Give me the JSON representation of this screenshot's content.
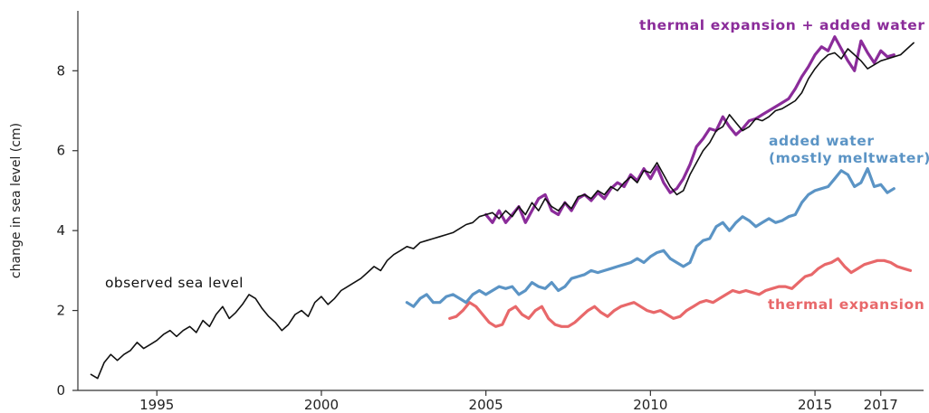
{
  "chart_data": {
    "type": "line",
    "title": "",
    "xlabel": "",
    "ylabel": "change in sea level (cm)",
    "xlim": [
      1992.6,
      2018.3
    ],
    "ylim": [
      0,
      9.5
    ],
    "x_ticks": [
      1995,
      2000,
      2005,
      2010,
      2015,
      2017
    ],
    "y_ticks": [
      0,
      2,
      4,
      6,
      8
    ],
    "grid": false,
    "legend": "none",
    "series": [
      {
        "name": "observed sea level",
        "color": "#111111",
        "x": [
          1993.0,
          1993.2,
          1993.4,
          1993.6,
          1993.8,
          1994.0,
          1994.2,
          1994.4,
          1994.6,
          1994.8,
          1995.0,
          1995.2,
          1995.4,
          1995.6,
          1995.8,
          1996.0,
          1996.2,
          1996.4,
          1996.6,
          1996.8,
          1997.0,
          1997.2,
          1997.4,
          1997.6,
          1997.8,
          1998.0,
          1998.2,
          1998.4,
          1998.6,
          1998.8,
          1999.0,
          1999.2,
          1999.4,
          1999.6,
          1999.8,
          2000.0,
          2000.2,
          2000.4,
          2000.6,
          2000.8,
          2001.0,
          2001.2,
          2001.4,
          2001.6,
          2001.8,
          2002.0,
          2002.2,
          2002.4,
          2002.6,
          2002.8,
          2003.0,
          2003.2,
          2003.4,
          2003.6,
          2003.8,
          2004.0,
          2004.2,
          2004.4,
          2004.6,
          2004.8,
          2005.0,
          2005.2,
          2005.4,
          2005.6,
          2005.8,
          2006.0,
          2006.2,
          2006.4,
          2006.6,
          2006.8,
          2007.0,
          2007.2,
          2007.4,
          2007.6,
          2007.8,
          2008.0,
          2008.2,
          2008.4,
          2008.6,
          2008.8,
          2009.0,
          2009.2,
          2009.4,
          2009.6,
          2009.8,
          2010.0,
          2010.2,
          2010.4,
          2010.6,
          2010.8,
          2011.0,
          2011.2,
          2011.4,
          2011.6,
          2011.8,
          2012.0,
          2012.2,
          2012.4,
          2012.6,
          2012.8,
          2013.0,
          2013.2,
          2013.4,
          2013.6,
          2013.8,
          2014.0,
          2014.2,
          2014.4,
          2014.6,
          2014.8,
          2015.0,
          2015.2,
          2015.4,
          2015.6,
          2015.8,
          2016.0,
          2016.2,
          2016.4,
          2016.6,
          2016.8,
          2017.0,
          2017.2,
          2017.4,
          2017.6,
          2017.8,
          2018.0
        ],
        "y": [
          0.4,
          0.3,
          0.7,
          0.9,
          0.75,
          0.9,
          1.0,
          1.2,
          1.05,
          1.15,
          1.25,
          1.4,
          1.5,
          1.35,
          1.5,
          1.6,
          1.45,
          1.75,
          1.6,
          1.9,
          2.1,
          1.8,
          1.95,
          2.15,
          2.4,
          2.3,
          2.05,
          1.85,
          1.7,
          1.5,
          1.65,
          1.9,
          2.0,
          1.85,
          2.2,
          2.35,
          2.15,
          2.3,
          2.5,
          2.6,
          2.7,
          2.8,
          2.95,
          3.1,
          3.0,
          3.25,
          3.4,
          3.5,
          3.6,
          3.55,
          3.7,
          3.75,
          3.8,
          3.85,
          3.9,
          3.95,
          4.05,
          4.15,
          4.2,
          4.35,
          4.4,
          4.45,
          4.3,
          4.5,
          4.35,
          4.6,
          4.4,
          4.7,
          4.5,
          4.8,
          4.6,
          4.5,
          4.7,
          4.55,
          4.85,
          4.9,
          4.8,
          5.0,
          4.9,
          5.1,
          5.0,
          5.2,
          5.35,
          5.2,
          5.5,
          5.45,
          5.7,
          5.4,
          5.1,
          4.9,
          5.0,
          5.4,
          5.7,
          6.0,
          6.2,
          6.5,
          6.6,
          6.9,
          6.7,
          6.5,
          6.6,
          6.8,
          6.75,
          6.85,
          7.0,
          7.05,
          7.15,
          7.25,
          7.45,
          7.8,
          8.05,
          8.25,
          8.4,
          8.45,
          8.3,
          8.55,
          8.4,
          8.25,
          8.05,
          8.15,
          8.25,
          8.3,
          8.35,
          8.4,
          8.55,
          8.7
        ]
      },
      {
        "name": "thermal expansion + added water",
        "color": "#8b2c9a",
        "x": [
          2005.0,
          2005.2,
          2005.4,
          2005.6,
          2005.8,
          2006.0,
          2006.2,
          2006.4,
          2006.6,
          2006.8,
          2007.0,
          2007.2,
          2007.4,
          2007.6,
          2007.8,
          2008.0,
          2008.2,
          2008.4,
          2008.6,
          2008.8,
          2009.0,
          2009.2,
          2009.4,
          2009.6,
          2009.8,
          2010.0,
          2010.2,
          2010.4,
          2010.6,
          2010.8,
          2011.0,
          2011.2,
          2011.4,
          2011.6,
          2011.8,
          2012.0,
          2012.2,
          2012.4,
          2012.6,
          2012.8,
          2013.0,
          2013.2,
          2013.4,
          2013.6,
          2013.8,
          2014.0,
          2014.2,
          2014.4,
          2014.6,
          2014.8,
          2015.0,
          2015.2,
          2015.4,
          2015.6,
          2015.8,
          2016.0,
          2016.2,
          2016.4,
          2016.6,
          2016.8,
          2017.0,
          2017.2,
          2017.4
        ],
        "y": [
          4.4,
          4.2,
          4.5,
          4.2,
          4.4,
          4.6,
          4.2,
          4.5,
          4.8,
          4.9,
          4.5,
          4.4,
          4.7,
          4.5,
          4.8,
          4.9,
          4.75,
          4.95,
          4.8,
          5.05,
          5.2,
          5.1,
          5.4,
          5.25,
          5.55,
          5.3,
          5.6,
          5.2,
          4.95,
          5.05,
          5.3,
          5.65,
          6.1,
          6.3,
          6.55,
          6.5,
          6.85,
          6.6,
          6.4,
          6.55,
          6.75,
          6.8,
          6.9,
          7.0,
          7.1,
          7.2,
          7.3,
          7.55,
          7.85,
          8.1,
          8.4,
          8.6,
          8.5,
          8.85,
          8.55,
          8.25,
          8.0,
          8.75,
          8.45,
          8.2,
          8.5,
          8.35,
          8.4
        ]
      },
      {
        "name": "added water (mostly meltwater)",
        "color": "#5b94c5",
        "x": [
          2002.6,
          2002.8,
          2003.0,
          2003.2,
          2003.4,
          2003.6,
          2003.8,
          2004.0,
          2004.2,
          2004.4,
          2004.6,
          2004.8,
          2005.0,
          2005.2,
          2005.4,
          2005.6,
          2005.8,
          2006.0,
          2006.2,
          2006.4,
          2006.6,
          2006.8,
          2007.0,
          2007.2,
          2007.4,
          2007.6,
          2007.8,
          2008.0,
          2008.2,
          2008.4,
          2008.6,
          2008.8,
          2009.0,
          2009.2,
          2009.4,
          2009.6,
          2009.8,
          2010.0,
          2010.2,
          2010.4,
          2010.6,
          2010.8,
          2011.0,
          2011.2,
          2011.4,
          2011.6,
          2011.8,
          2012.0,
          2012.2,
          2012.4,
          2012.6,
          2012.8,
          2013.0,
          2013.2,
          2013.4,
          2013.6,
          2013.8,
          2014.0,
          2014.2,
          2014.4,
          2014.6,
          2014.8,
          2015.0,
          2015.2,
          2015.4,
          2015.6,
          2015.8,
          2016.0,
          2016.2,
          2016.4,
          2016.6,
          2016.8,
          2017.0,
          2017.2,
          2017.4
        ],
        "y": [
          2.2,
          2.1,
          2.3,
          2.4,
          2.2,
          2.2,
          2.35,
          2.4,
          2.3,
          2.2,
          2.4,
          2.5,
          2.4,
          2.5,
          2.6,
          2.55,
          2.6,
          2.4,
          2.5,
          2.7,
          2.6,
          2.55,
          2.7,
          2.5,
          2.6,
          2.8,
          2.85,
          2.9,
          3.0,
          2.95,
          3.0,
          3.05,
          3.1,
          3.15,
          3.2,
          3.3,
          3.2,
          3.35,
          3.45,
          3.5,
          3.3,
          3.2,
          3.1,
          3.2,
          3.6,
          3.75,
          3.8,
          4.1,
          4.2,
          4.0,
          4.2,
          4.35,
          4.25,
          4.1,
          4.2,
          4.3,
          4.2,
          4.25,
          4.35,
          4.4,
          4.7,
          4.9,
          5.0,
          5.05,
          5.1,
          5.3,
          5.5,
          5.4,
          5.1,
          5.2,
          5.55,
          5.1,
          5.15,
          4.95,
          5.05
        ]
      },
      {
        "name": "thermal expansion",
        "color": "#e8686a",
        "x": [
          2003.9,
          2004.1,
          2004.3,
          2004.5,
          2004.7,
          2004.9,
          2005.1,
          2005.3,
          2005.5,
          2005.7,
          2005.9,
          2006.1,
          2006.3,
          2006.5,
          2006.7,
          2006.9,
          2007.1,
          2007.3,
          2007.5,
          2007.7,
          2007.9,
          2008.1,
          2008.3,
          2008.5,
          2008.7,
          2008.9,
          2009.1,
          2009.3,
          2009.5,
          2009.7,
          2009.9,
          2010.1,
          2010.3,
          2010.5,
          2010.7,
          2010.9,
          2011.1,
          2011.3,
          2011.5,
          2011.7,
          2011.9,
          2012.1,
          2012.3,
          2012.5,
          2012.7,
          2012.9,
          2013.1,
          2013.3,
          2013.5,
          2013.7,
          2013.9,
          2014.1,
          2014.3,
          2014.5,
          2014.7,
          2014.9,
          2015.1,
          2015.3,
          2015.5,
          2015.7,
          2015.9,
          2016.1,
          2016.3,
          2016.5,
          2016.7,
          2016.9,
          2017.1,
          2017.3,
          2017.5,
          2017.7,
          2017.9
        ],
        "y": [
          1.8,
          1.85,
          2.0,
          2.2,
          2.1,
          1.9,
          1.7,
          1.6,
          1.65,
          2.0,
          2.1,
          1.9,
          1.8,
          2.0,
          2.1,
          1.8,
          1.65,
          1.6,
          1.6,
          1.7,
          1.85,
          2.0,
          2.1,
          1.95,
          1.85,
          2.0,
          2.1,
          2.15,
          2.2,
          2.1,
          2.0,
          1.95,
          2.0,
          1.9,
          1.8,
          1.85,
          2.0,
          2.1,
          2.2,
          2.25,
          2.2,
          2.3,
          2.4,
          2.5,
          2.45,
          2.5,
          2.45,
          2.4,
          2.5,
          2.55,
          2.6,
          2.6,
          2.55,
          2.7,
          2.85,
          2.9,
          3.05,
          3.15,
          3.2,
          3.3,
          3.1,
          2.95,
          3.05,
          3.15,
          3.2,
          3.25,
          3.25,
          3.2,
          3.1,
          3.05,
          3.0
        ]
      }
    ],
    "annotations": [
      {
        "text": "observed sea level",
        "color": "#111111"
      },
      {
        "text": "thermal expansion + added water",
        "color": "#8b2c9a"
      },
      {
        "text": "added water",
        "color": "#5b94c5"
      },
      {
        "text": "(mostly meltwater)",
        "color": "#5b94c5"
      },
      {
        "text": "thermal expansion",
        "color": "#e8686a"
      }
    ]
  }
}
